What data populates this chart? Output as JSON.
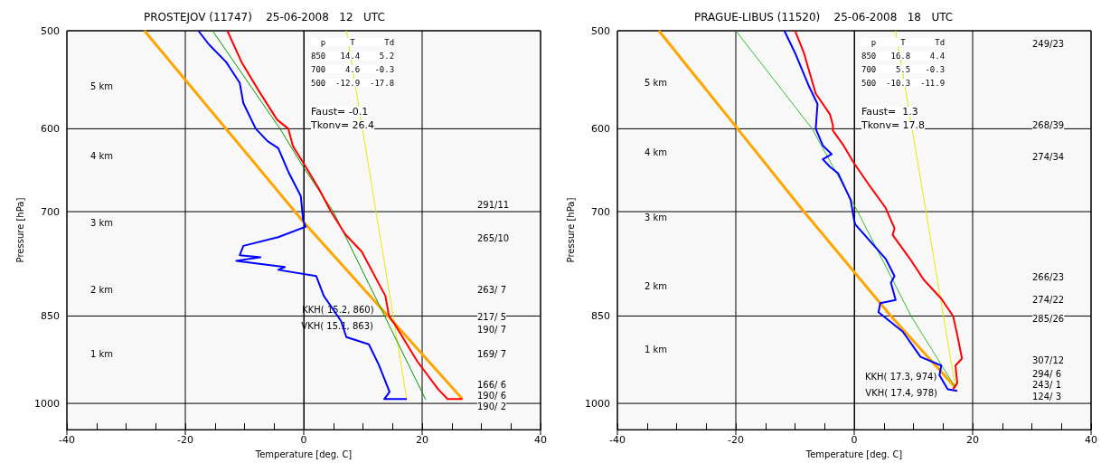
{
  "chart_data": [
    {
      "type": "line",
      "title": "PROSTEJOV (11747)    25-06-2008   12   UTC",
      "xlabel": "Temperature [deg. C]",
      "ylabel": "Pressure [hPa]",
      "log": "y",
      "grid": true,
      "marker": "none",
      "xlim": [
        -40,
        40
      ],
      "xticks": [
        -40,
        {
          "value": -35,
          "label": null
        },
        {
          "value": -30,
          "label": null
        },
        {
          "value": -25,
          "label": null
        },
        -20,
        {
          "value": -15,
          "label": null
        },
        {
          "value": -10,
          "label": null
        },
        {
          "value": -5,
          "label": null
        },
        0,
        {
          "value": 5,
          "label": null
        },
        {
          "value": 10,
          "label": null
        },
        {
          "value": 15,
          "label": null
        },
        20,
        {
          "value": 25,
          "label": null
        },
        {
          "value": 30,
          "label": null
        },
        {
          "value": 35,
          "label": null
        },
        40
      ],
      "ylim": [
        1050,
        500
      ],
      "yticks": [
        500,
        600,
        700,
        850,
        1000
      ],
      "series": [
        {
          "color": "#ffa500",
          "x": [
            -26.9,
            -0.1,
            15,
            26.8
          ],
          "values": [
            500,
            713,
            858,
            992
          ]
        },
        {
          "color": "#e8e800",
          "x": [
            7.2,
            17.4
          ],
          "values": [
            500,
            992
          ]
        },
        {
          "color": "#009900",
          "x": [
            -15.4,
            -4.0,
            0,
            5.0,
            20.6
          ],
          "values": [
            500,
            600,
            645,
            700,
            993
          ]
        },
        {
          "color": "#ff0000",
          "x": [
            -12.9,
            -10.5,
            -7.5,
            -4.5,
            -2.6,
            -1.8,
            0,
            2.5,
            4.6,
            7,
            9.8,
            13.8,
            14.4,
            15.3,
            19.2,
            22.7,
            24.3,
            26.8
          ],
          "values": [
            500,
            530,
            560,
            590,
            600,
            620,
            640,
            670,
            700,
            730,
            754,
            819,
            850,
            862,
            925,
            974,
            992,
            992
          ]
        },
        {
          "color": "#0000ff",
          "x": [
            -17.8,
            -16,
            -13.1,
            -10.8,
            -10.2,
            -8.1,
            -6.1,
            -4.3,
            -2.6,
            -0.5,
            -0.1,
            0.3,
            -4.3,
            -10.2,
            -10.8,
            -7.3,
            -11.4,
            -3.2,
            -4.3,
            2.1,
            3.4,
            4.4,
            6.3,
            7.2,
            11.0,
            12.7,
            14.5,
            13.6,
            17.4
          ],
          "values": [
            500,
            513,
            530,
            551,
            572,
            600,
            614,
            622,
            650,
            680,
            711,
            720,
            734,
            746,
            759,
            762,
            767,
            776,
            780,
            789,
            819,
            832,
            858,
            884,
            896,
            931,
            979,
            992,
            992
          ]
        }
      ],
      "annotations": [
        "  p     T      Td",
        "850   14.4    5.2",
        "700    4.6   -0.3",
        "500  -12.9  -17.8",
        "Faust= -0.1",
        "Tkonv= 26.4",
        {
          "text": "VKH( 15.1, 863)",
          "x": 15.1,
          "y": 863
        },
        {
          "text": "KKH( 15.2, 860)",
          "x": 15.2,
          "y": 860
        },
        "5 km",
        "4 km",
        "3 km",
        "2 km",
        "1 km",
        "291/11",
        "265/10",
        "263/ 7",
        "217/ 5",
        "190/ 7",
        "169/ 7",
        "166/ 6",
        "190/ 6",
        "190/ 2"
      ]
    },
    {
      "type": "line",
      "title": "PRAGUE-LIBUS (11520)    25-06-2008   18   UTC",
      "xlabel": "Temperature [deg. C]",
      "ylabel": "Pressure [hPa]",
      "log": "y",
      "grid": true,
      "marker": "none",
      "xlim": [
        -40,
        40
      ],
      "xticks": [
        -40,
        {
          "value": -35,
          "label": null
        },
        {
          "value": -30,
          "label": null
        },
        {
          "value": -25,
          "label": null
        },
        -20,
        {
          "value": -15,
          "label": null
        },
        {
          "value": -10,
          "label": null
        },
        {
          "value": -5,
          "label": null
        },
        0,
        {
          "value": 5,
          "label": null
        },
        {
          "value": 10,
          "label": null
        },
        {
          "value": 15,
          "label": null
        },
        20,
        {
          "value": 25,
          "label": null
        },
        {
          "value": 30,
          "label": null
        },
        {
          "value": 35,
          "label": null
        },
        40
      ],
      "ylim": [
        1050,
        500
      ],
      "yticks": [
        500,
        600,
        700,
        850,
        1000
      ],
      "series": [
        {
          "color": "#ffa500",
          "x": [
            -33,
            -19.7,
            -8.5,
            6.2,
            17.1
          ],
          "values": [
            500,
            600,
            700,
            850,
            971
          ]
        },
        {
          "color": "#e8e800",
          "x": [
            7.0,
            17.1
          ],
          "values": [
            500,
            971
          ]
        },
        {
          "color": "#33bb33",
          "x": [
            -20,
            -7.1,
            0.6,
            9.6,
            17.1
          ],
          "values": [
            500,
            600,
            700,
            850,
            971
          ]
        },
        {
          "color": "#ff0000",
          "x": [
            -10.0,
            -8.5,
            -6.5,
            -4.1,
            -3.6,
            -3.6,
            -1.8,
            0,
            2.4,
            5.3,
            6.8,
            6.5,
            9.4,
            11.7,
            14.7,
            16.7,
            17.4,
            18.2,
            17.1,
            17.4,
            16.7
          ],
          "values": [
            500,
            521,
            562,
            584,
            596,
            602,
            619,
            640,
            665,
            695,
            722,
            731,
            764,
            794,
            823,
            850,
            880,
            920,
            932,
            963,
            974
          ]
        },
        {
          "color": "#0000ff",
          "x": [
            -11.8,
            -10.0,
            -7.6,
            -6.2,
            -6.5,
            -5.3,
            -3.8,
            -5.3,
            -4.1,
            -2.7,
            -0.6,
            0,
            0.2,
            5.3,
            6.8,
            6.2,
            7.0,
            4.4,
            4.1,
            8.2,
            11.2,
            14.7,
            14.4,
            15.8,
            17.4
          ],
          "values": [
            500,
            521,
            555,
            573,
            600,
            619,
            629,
            635,
            644,
            652,
            685,
            712,
            717,
            764,
            789,
            799,
            825,
            830,
            844,
            875,
            917,
            932,
            949,
            974,
            977
          ]
        }
      ],
      "annotations": [
        "  p     T      Td",
        "850   16.8    4.4",
        "700    5.5   -0.3",
        "500  -10.3  -11.9",
        "Faust=  1.3",
        "Tkonv= 17.8",
        {
          "text": "VKH( 17.4, 978)",
          "x": 17.4,
          "y": 978
        },
        {
          "text": "KKH( 17.3, 974)",
          "x": 17.3,
          "y": 974
        },
        "5 km",
        "4 km",
        "3 km",
        "2 km",
        "1 km",
        "249/23",
        "268/39",
        "274/34",
        "266/23",
        "274/22",
        "285/26",
        "307/12",
        "294/ 6",
        "243/ 1",
        "124/ 3"
      ]
    }
  ]
}
